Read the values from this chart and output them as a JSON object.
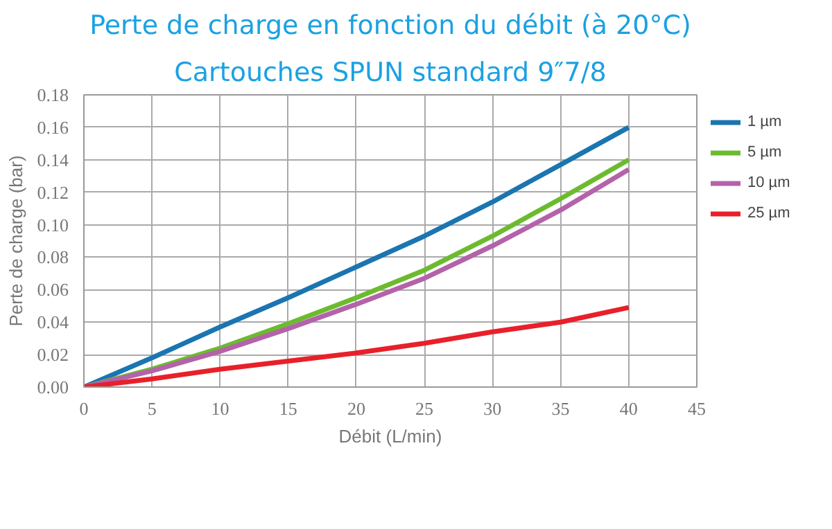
{
  "chart_data": {
    "type": "line",
    "title": "Perte de charge en fonction du débit (à 20°C)",
    "subtitle": "Cartouches SPUN standard 9″7/8",
    "xlabel": "Débit (L/min)",
    "ylabel": "Perte de charge (bar)",
    "x": [
      0,
      5,
      10,
      15,
      20,
      25,
      30,
      35,
      40
    ],
    "series": [
      {
        "name": "1 µm",
        "color": "#1a75b0",
        "values": [
          0,
          0.018,
          0.037,
          0.055,
          0.074,
          0.093,
          0.114,
          0.137,
          0.16
        ]
      },
      {
        "name": "5 µm",
        "color": "#6cbb2f",
        "values": [
          0,
          0.011,
          0.024,
          0.039,
          0.055,
          0.072,
          0.093,
          0.116,
          0.14
        ]
      },
      {
        "name": "10 µm",
        "color": "#b462aa",
        "values": [
          0,
          0.01,
          0.022,
          0.036,
          0.051,
          0.067,
          0.087,
          0.109,
          0.134
        ]
      },
      {
        "name": "25 µm",
        "color": "#e8202a",
        "values": [
          0,
          0.005,
          0.011,
          0.016,
          0.021,
          0.027,
          0.034,
          0.04,
          0.049
        ]
      }
    ],
    "xlim": [
      0,
      45
    ],
    "xticks": [
      0,
      5,
      10,
      15,
      20,
      25,
      30,
      35,
      40,
      45
    ],
    "ylim": [
      0,
      0.18
    ],
    "yticks": [
      {
        "value": 0,
        "label": "0.00"
      },
      {
        "value": 0.02,
        "label": "0.02"
      },
      {
        "value": 0.04,
        "label": "0.04"
      },
      {
        "value": 0.06,
        "label": "0.06"
      },
      {
        "value": 0.08,
        "label": "0.08"
      },
      {
        "value": 0.1,
        "label": "0.10"
      },
      {
        "value": 0.12,
        "label": "0.12"
      },
      {
        "value": 0.14,
        "label": "0.14"
      },
      {
        "value": 0.16,
        "label": "0.16"
      },
      {
        "value": 0.18,
        "label": "0.18"
      }
    ],
    "grid": true,
    "legend": "top right",
    "line_style": "solid",
    "marker": "none"
  }
}
